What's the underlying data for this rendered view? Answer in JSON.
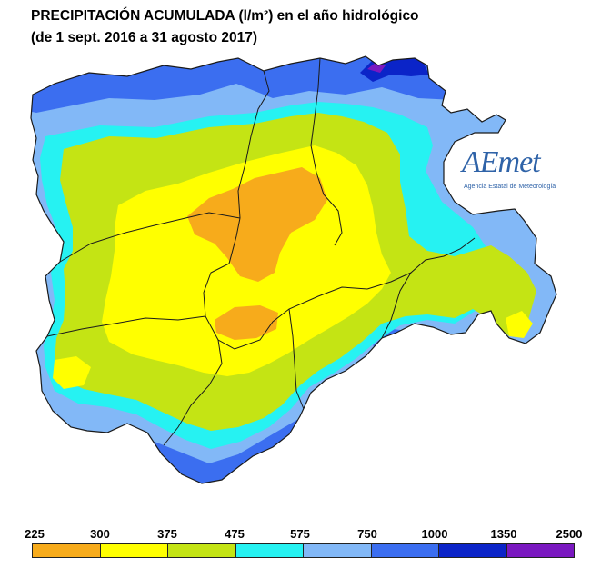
{
  "title": {
    "line1": "PRECIPITACIÓN ACUMULADA (l/m²) en el año hidrológico",
    "line2": "(de 1 sept. 2016 a 31 agosto 2017)"
  },
  "logo": {
    "name": "AEmet",
    "subtitle": "Agencia Estatal de Meteorología"
  },
  "legend": {
    "thresholds": [
      "225",
      "300",
      "375",
      "475",
      "575",
      "750",
      "1000",
      "1350",
      "2500"
    ],
    "colors": [
      "#f7ab1b",
      "#ffff00",
      "#c4e414",
      "#26f2f2",
      "#82b8f7",
      "#3b6ef0",
      "#0b24c8",
      "#7a18c0"
    ]
  },
  "map_colors": {
    "outline": "#222222",
    "band_300_375": "#ffff00",
    "band_225_300": "#f7ab1b",
    "band_375_475": "#c4e414",
    "band_475_575": "#26f2f2",
    "band_575_750": "#82b8f7",
    "band_750_1000": "#3b6ef0",
    "band_1000_1350": "#0b24c8",
    "band_1350_2500": "#7a18c0"
  }
}
